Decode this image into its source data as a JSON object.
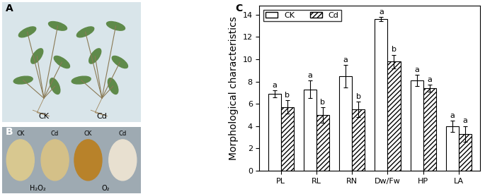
{
  "chart_data": {
    "type": "bar",
    "panel": "C",
    "ylabel": "Morphological characteristics",
    "categories": [
      "PL",
      "RL",
      "RN",
      "Dw/Fw",
      "HP",
      "LA"
    ],
    "series": [
      {
        "name": "CK",
        "color": "#ffffff",
        "values": [
          6.9,
          7.3,
          8.5,
          13.6,
          8.1,
          4.0
        ],
        "error": [
          0.3,
          0.8,
          1.0,
          0.2,
          0.5,
          0.5
        ],
        "letters": [
          "a",
          "a",
          "a",
          "a",
          "a",
          "a"
        ]
      },
      {
        "name": "Cd",
        "color": "#ffffff",
        "values": [
          5.7,
          5.0,
          5.5,
          9.8,
          7.4,
          3.3
        ],
        "error": [
          0.6,
          0.7,
          0.7,
          0.6,
          0.3,
          0.7
        ],
        "letters": [
          "b",
          "b",
          "b",
          "b",
          "a",
          "a"
        ]
      }
    ],
    "ylim": [
      0,
      14.8
    ],
    "yticks": [
      0,
      2,
      4,
      6,
      8,
      10,
      12,
      14
    ],
    "legend": "upper left"
  },
  "images": [
    {
      "panel": "A",
      "labels": [
        "CK",
        "Cd"
      ]
    },
    {
      "panel": "B",
      "labels": [
        "CK",
        "Cd",
        "CK",
        "Cd"
      ],
      "captions": [
        "H₂O₂",
        "O₂"
      ]
    }
  ]
}
